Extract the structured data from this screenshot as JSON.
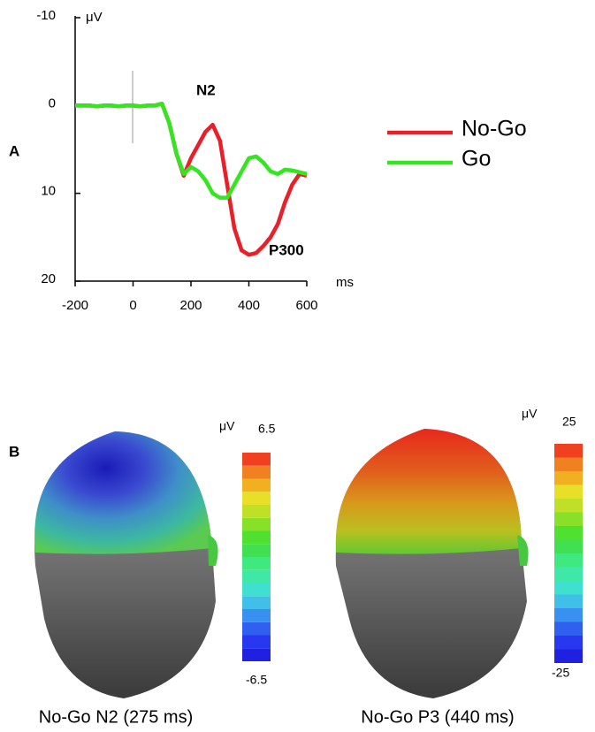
{
  "chart_data": {
    "type": "line",
    "panel_label": "A",
    "y_unit_label": "μV",
    "x_unit_label": "ms",
    "annotations": [
      "N2",
      "P300"
    ],
    "x": [
      -200,
      -175,
      -150,
      -125,
      -100,
      -75,
      -50,
      -25,
      0,
      25,
      50,
      75,
      100,
      125,
      150,
      175,
      200,
      225,
      250,
      275,
      300,
      325,
      350,
      375,
      400,
      425,
      450,
      475,
      500,
      525,
      550,
      575,
      600
    ],
    "series": [
      {
        "name": "No-Go",
        "color": "#e8202a",
        "values": [
          0,
          0,
          0,
          0.1,
          0,
          0,
          0.1,
          0,
          0,
          0.1,
          0,
          0,
          -0.2,
          2,
          5.5,
          8,
          6,
          4.5,
          3,
          2.2,
          4,
          9,
          14,
          16.5,
          17,
          16.8,
          16,
          15,
          13.5,
          11,
          9,
          7.8,
          8
        ]
      },
      {
        "name": "Go",
        "color": "#33e620",
        "values": [
          0,
          0,
          0,
          0.1,
          0,
          0,
          0.1,
          0,
          0,
          0.1,
          0,
          0,
          -0.2,
          2,
          5.5,
          7.8,
          7,
          7.5,
          8.5,
          10,
          10.5,
          10.5,
          9,
          7.5,
          6,
          5.8,
          6.5,
          7.5,
          7.8,
          7.3,
          7.4,
          7.6,
          7.8
        ]
      }
    ],
    "xlim": [
      -200,
      600
    ],
    "xticks": [
      -200,
      0,
      200,
      400,
      600
    ],
    "ylim": [
      -10,
      20
    ],
    "yticks": [
      -10,
      0,
      10,
      20
    ],
    "y_inverted": true,
    "legend": "right"
  },
  "topographies": {
    "panel_label": "B",
    "maps": [
      {
        "caption": "No-Go N2 (275 ms)",
        "unit": "μV",
        "scale_max": 6.5,
        "scale_min": -6.5
      },
      {
        "caption": "No-Go P3 (440 ms)",
        "unit": "μV",
        "scale_max": 25,
        "scale_min": -25
      }
    ]
  }
}
